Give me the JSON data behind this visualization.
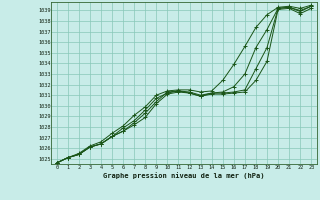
{
  "title": "Graphe pression niveau de la mer (hPa)",
  "bg_color": "#c8ece8",
  "grid_color": "#88c8b8",
  "line_color": "#1a5518",
  "xlim": [
    -0.5,
    23.5
  ],
  "ylim": [
    1024.5,
    1039.8
  ],
  "yticks": [
    1025,
    1026,
    1027,
    1028,
    1029,
    1030,
    1031,
    1032,
    1033,
    1034,
    1035,
    1036,
    1037,
    1038,
    1039
  ],
  "xticks": [
    0,
    1,
    2,
    3,
    4,
    5,
    6,
    7,
    8,
    9,
    10,
    11,
    12,
    13,
    14,
    15,
    16,
    17,
    18,
    19,
    20,
    21,
    22,
    23
  ],
  "series": [
    [
      1024.6,
      1025.1,
      1025.4,
      1026.1,
      1026.4,
      1027.1,
      1027.6,
      1028.2,
      1028.9,
      1030.2,
      1031.1,
      1031.3,
      1031.2,
      1030.9,
      1031.1,
      1031.1,
      1031.2,
      1031.3,
      1032.4,
      1034.2,
      1039.1,
      1039.2,
      1038.7,
      1039.2
    ],
    [
      1024.6,
      1025.1,
      1025.4,
      1026.1,
      1026.4,
      1027.1,
      1027.6,
      1028.4,
      1029.3,
      1030.4,
      1031.3,
      1031.4,
      1031.2,
      1030.9,
      1031.2,
      1031.2,
      1031.3,
      1031.5,
      1033.5,
      1035.5,
      1039.2,
      1039.3,
      1038.9,
      1039.4
    ],
    [
      1024.6,
      1025.1,
      1025.4,
      1026.1,
      1026.4,
      1027.1,
      1027.9,
      1028.6,
      1029.6,
      1030.7,
      1031.2,
      1031.4,
      1031.3,
      1031.0,
      1031.2,
      1031.3,
      1031.8,
      1033.0,
      1035.5,
      1037.2,
      1039.2,
      1039.3,
      1039.0,
      1039.4
    ],
    [
      1024.6,
      1025.1,
      1025.5,
      1026.2,
      1026.6,
      1027.4,
      1028.1,
      1029.1,
      1029.9,
      1031.0,
      1031.4,
      1031.5,
      1031.5,
      1031.3,
      1031.4,
      1032.4,
      1033.9,
      1035.6,
      1037.4,
      1038.6,
      1039.3,
      1039.4,
      1039.2,
      1039.5
    ]
  ]
}
